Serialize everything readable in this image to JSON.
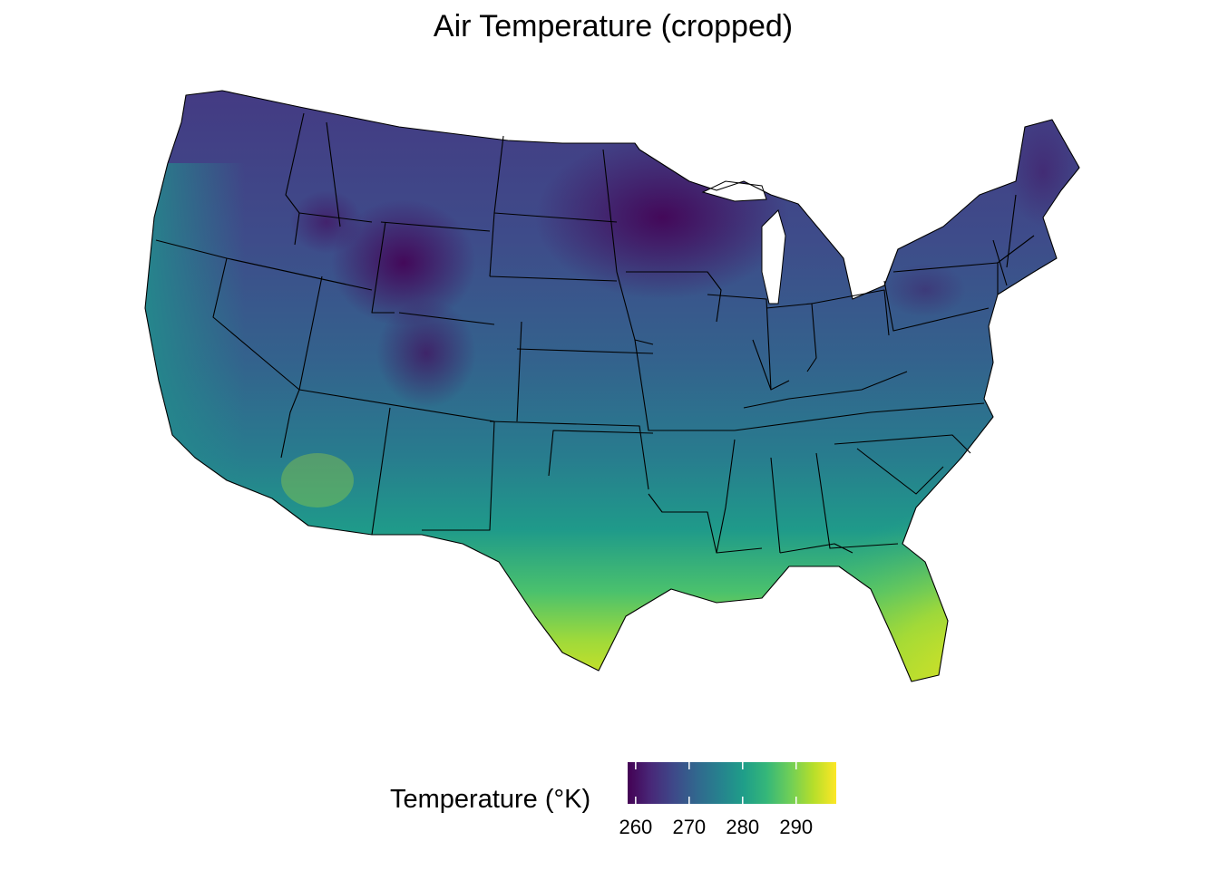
{
  "title": "Air Temperature (cropped)",
  "legend": {
    "title": "Temperature (°K)",
    "ticks": [
      260,
      270,
      280,
      290
    ],
    "range": [
      258.5,
      297.5
    ],
    "colormap": "viridis",
    "colors": [
      "#440154",
      "#482878",
      "#3e4989",
      "#31688e",
      "#26828e",
      "#1f9e89",
      "#35b779",
      "#6ece58",
      "#b5de2b",
      "#fde725"
    ]
  }
}
